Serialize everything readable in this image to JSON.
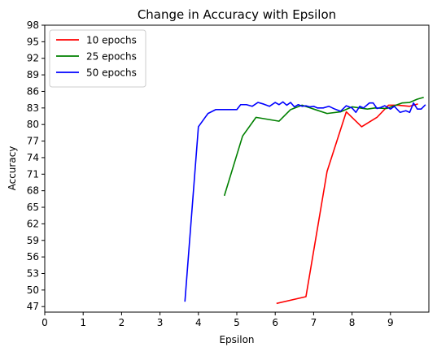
{
  "chart_data": {
    "type": "line",
    "title": "Change in Accuracy with Epsilon",
    "xlabel": "Epsilon",
    "ylabel": "Accuracy",
    "xlim": [
      0,
      10
    ],
    "ylim": [
      46,
      98
    ],
    "xticks": [
      0,
      1,
      2,
      3,
      4,
      5,
      6,
      7,
      8,
      9
    ],
    "yticks": [
      47,
      50,
      53,
      56,
      59,
      62,
      65,
      68,
      71,
      74,
      77,
      80,
      83,
      86,
      89,
      92,
      95,
      98
    ],
    "grid": false,
    "legend_position": "top-left",
    "series": [
      {
        "name": "10 epochs",
        "color": "#ff0000",
        "x": [
          6.05,
          6.8,
          7.35,
          7.85,
          8.25,
          8.65,
          8.95,
          9.2,
          9.5,
          9.7
        ],
        "y": [
          47.6,
          48.8,
          71.5,
          82.3,
          79.6,
          81.3,
          83.5,
          83.5,
          83.3,
          83.7
        ]
      },
      {
        "name": "25 epochs",
        "color": "#008000",
        "x": [
          4.68,
          5.15,
          5.5,
          6.1,
          6.4,
          6.7,
          7.0,
          7.35,
          7.7,
          8.0,
          8.2,
          8.4,
          8.6,
          8.9,
          9.1,
          9.3,
          9.5,
          9.7,
          9.85
        ],
        "y": [
          67.2,
          77.9,
          81.3,
          80.6,
          82.7,
          83.5,
          82.8,
          82.0,
          82.3,
          83.2,
          83.0,
          82.8,
          83.0,
          82.9,
          83.4,
          83.9,
          84.0,
          84.6,
          84.9
        ]
      },
      {
        "name": "50 epochs",
        "color": "#0000ff",
        "x": [
          3.65,
          4.0,
          4.25,
          4.45,
          4.6,
          4.8,
          5.0,
          5.1,
          5.25,
          5.4,
          5.55,
          5.7,
          5.85,
          6.0,
          6.1,
          6.2,
          6.3,
          6.4,
          6.5,
          6.6,
          6.7,
          6.8,
          6.9,
          7.0,
          7.1,
          7.25,
          7.4,
          7.55,
          7.7,
          7.85,
          8.0,
          8.1,
          8.2,
          8.3,
          8.45,
          8.55,
          8.65,
          8.75,
          8.85,
          9.0,
          9.1,
          9.25,
          9.4,
          9.5,
          9.6,
          9.7,
          9.8,
          9.9
        ],
        "y": [
          48.0,
          79.6,
          82.0,
          82.7,
          82.7,
          82.7,
          82.7,
          83.6,
          83.6,
          83.3,
          84.0,
          83.7,
          83.3,
          84.0,
          83.6,
          84.1,
          83.5,
          84.0,
          83.2,
          83.6,
          83.3,
          83.4,
          83.2,
          83.3,
          83.0,
          83.0,
          83.3,
          82.8,
          82.4,
          83.4,
          83.0,
          82.2,
          83.3,
          83.0,
          83.9,
          83.9,
          82.9,
          83.1,
          83.4,
          82.8,
          83.3,
          82.2,
          82.5,
          82.2,
          83.9,
          82.8,
          82.8,
          83.5
        ]
      }
    ]
  }
}
